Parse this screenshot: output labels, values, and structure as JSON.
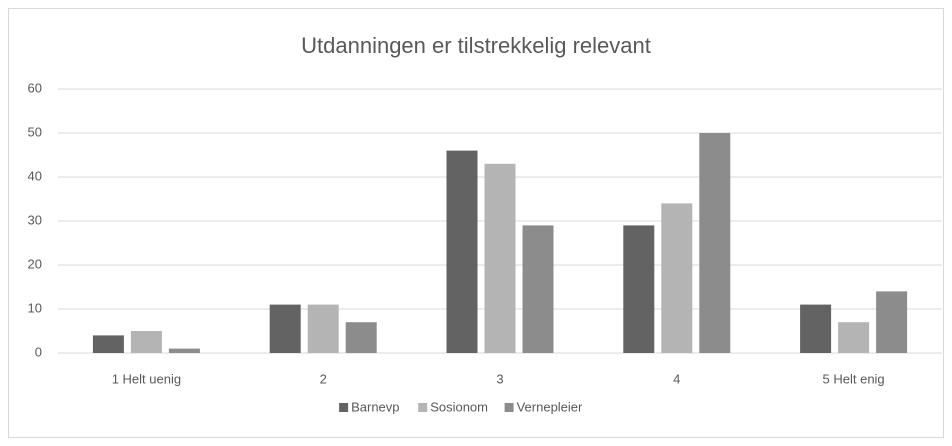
{
  "chart_data": {
    "type": "bar",
    "title": "Utdanningen er tilstrekkelig relevant",
    "categories": [
      "1 Helt uenig",
      "2",
      "3",
      "4",
      "5 Helt enig"
    ],
    "series": [
      {
        "name": "Barnevp",
        "color": "#636363",
        "values": [
          4,
          11,
          46,
          29,
          11
        ]
      },
      {
        "name": "Sosionom",
        "color": "#b4b4b4",
        "values": [
          5,
          11,
          43,
          34,
          7
        ]
      },
      {
        "name": "Vernepleier",
        "color": "#8c8c8c",
        "values": [
          1,
          7,
          29,
          50,
          14
        ]
      }
    ],
    "ylim": [
      0,
      60
    ],
    "yticks": [
      0,
      10,
      20,
      30,
      40,
      50,
      60
    ],
    "grid": true,
    "legend": "bottom"
  }
}
